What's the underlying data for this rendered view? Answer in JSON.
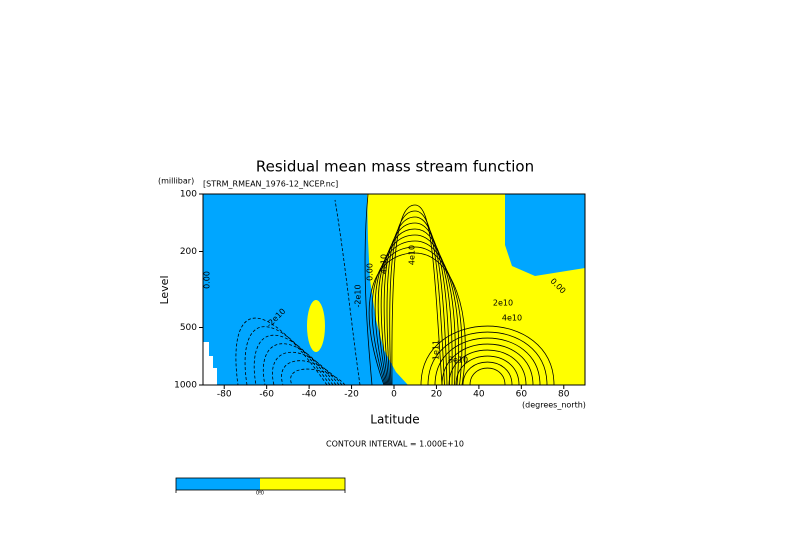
{
  "chart_data": {
    "type": "contour",
    "title": "Residual mean mass stream function",
    "subtitle": "[STRM_RMEAN_1976-12_NCEP.nc]",
    "x_label": "Latitude",
    "x_unit": "(degrees_north)",
    "y_label": "Level",
    "y_unit": "(millibar)",
    "note": "CONTOUR INTERVAL = 1.000E+10",
    "xlim": [
      -90,
      90
    ],
    "xticks": [
      -80,
      -60,
      -40,
      -20,
      0,
      20,
      40,
      60,
      80
    ],
    "ylim": [
      1000,
      100
    ],
    "yticks": [
      100,
      200,
      500,
      1000
    ],
    "yscale": "log",
    "colors": {
      "negative": "#00a6ff",
      "positive": "#ffff00"
    },
    "colorbar_label": "0.0",
    "contour_labels": [
      "0.00",
      "-2e10",
      "-2e10",
      "0.00",
      "4e10",
      "4e10",
      "2e10",
      "4e10",
      "1e11",
      "8e10",
      "0.00"
    ]
  }
}
